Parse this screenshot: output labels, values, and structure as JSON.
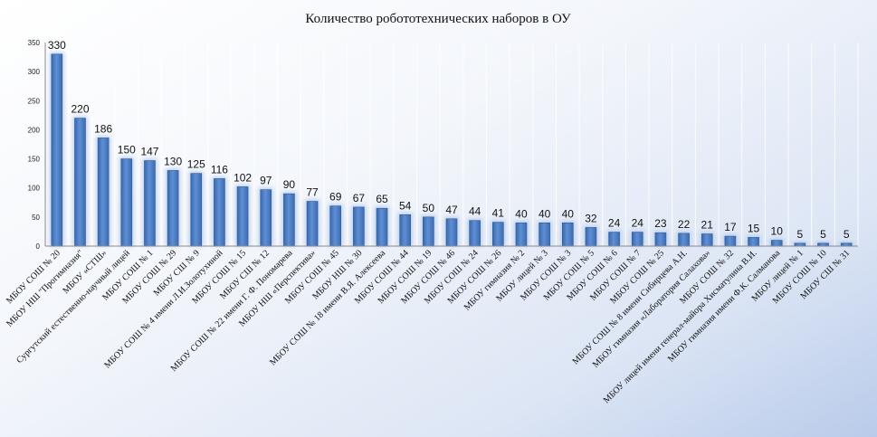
{
  "chart_data": {
    "type": "bar",
    "title": "Количество робототехнических наборов в ОУ",
    "xlabel": "",
    "ylabel": "",
    "ylim": [
      0,
      350
    ],
    "yticks": [
      0,
      50,
      100,
      150,
      200,
      250,
      300,
      350
    ],
    "grid": "vertical",
    "legend": "none",
    "bar_color": "#4a7cc2",
    "categories": [
      "МБОУ СОШ № 20",
      "МБОУ НШ \"Прогимназия\"",
      "МБОУ «СТШ»",
      "Сургутский естественно-научный лицей",
      "МБОУ СОШ № 1",
      "МБОУ СОШ № 29",
      "МБОУ СШ № 9",
      "МБОУ СОШ № 4 имени Л.И.Золотухиной",
      "МБОУ СОШ № 15",
      "МБОУ СШ № 12",
      "МБОУ СОШ № 22 имени Г. Ф. Пономарева",
      "МБОУ НШ «Перспектива»",
      "МБОУ СОШ № 45",
      "МБОУ НШ № 30",
      "МБОУ СОШ № 18 имени В.Я. Алексеева",
      "МБОУ СОШ № 44",
      "МБОУ СОШ № 19",
      "МБОУ СОШ № 46",
      "МБОУ СОШ № 24",
      "МБОУ СОШ № 26",
      "МБОУ гимназия № 2",
      "МБОУ лицей № 3",
      "МБОУ СОШ № 3",
      "МБОУ СОШ № 5",
      "МБОУ СОШ № 6",
      "МБОУ СОШ № 7",
      "МБОУ СОШ № 25",
      "МБОУ СОШ № 8 имени Сибирцева А.Н.",
      "МБОУ гимназия «Лаборатория Салахова»",
      "МБОУ СОШ № 32",
      "МБОУ лицей имени генерал-майора Хисматулина В.И.",
      "МБОУ гимназия имени Ф.К. Салманова",
      "МБОУ лицей № 1",
      "МБОУ СОШ № 10",
      "МБОУ СШ № 31"
    ],
    "values": [
      330,
      220,
      186,
      150,
      147,
      130,
      125,
      116,
      102,
      97,
      90,
      77,
      69,
      67,
      65,
      54,
      50,
      47,
      44,
      41,
      40,
      40,
      40,
      32,
      24,
      24,
      23,
      22,
      21,
      17,
      15,
      10,
      5,
      5,
      5
    ]
  }
}
